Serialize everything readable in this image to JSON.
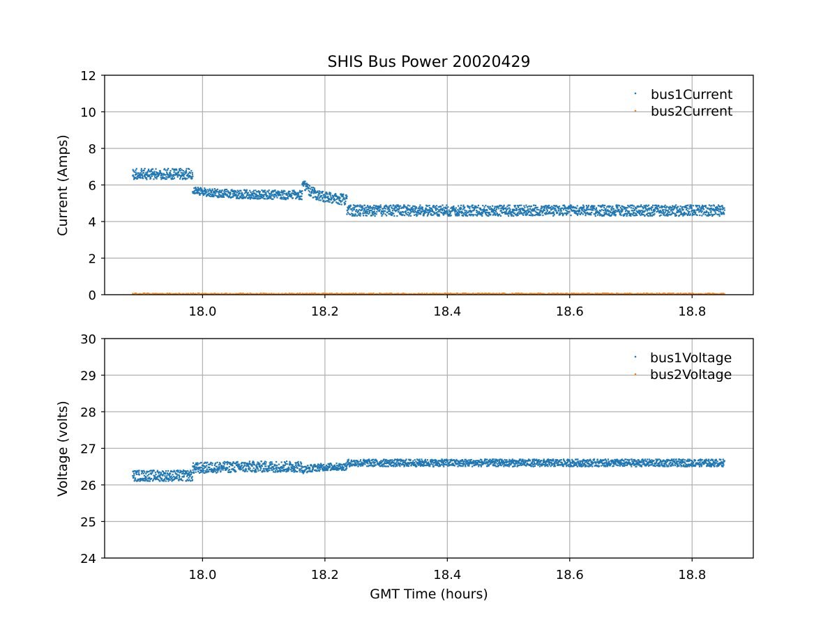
{
  "chart_data": [
    {
      "type": "scatter",
      "title": "SHIS Bus Power 20020429",
      "xlabel": "",
      "ylabel": "Current (Amps)",
      "xlim": [
        17.84,
        18.9
      ],
      "ylim": [
        0,
        12
      ],
      "xticks": [
        18.0,
        18.2,
        18.4,
        18.6,
        18.8
      ],
      "xtick_labels": [
        "18.0",
        "18.2",
        "18.4",
        "18.6",
        "18.8"
      ],
      "yticks": [
        0,
        2,
        4,
        6,
        8,
        10,
        12
      ],
      "ytick_labels": [
        "0",
        "2",
        "4",
        "6",
        "8",
        "10",
        "12"
      ],
      "grid": true,
      "legend_position": "top-right",
      "x_range": [
        17.886,
        18.853
      ],
      "series": [
        {
          "name": "bus1Current",
          "color": "#1f77b4",
          "segments": [
            {
              "x": [
                17.886,
                17.984
              ],
              "band": [
                [
                  6.3,
                  6.6
                ],
                [
                  6.5,
                  6.9
                ]
              ]
            },
            {
              "x": [
                17.984,
                18.163
              ],
              "start": [
                5.5,
                5.9
              ],
              "end": [
                5.2,
                5.7
              ]
            },
            {
              "x": [
                18.163,
                18.236
              ],
              "start": [
                5.9,
                6.5
              ],
              "end": [
                4.9,
                5.5
              ]
            },
            {
              "x": [
                18.236,
                18.853
              ],
              "band": [
                [
                  4.3,
                  4.6
                ],
                [
                  4.6,
                  4.9
                ]
              ]
            }
          ]
        },
        {
          "name": "bus2Current",
          "color": "#ff7f0e",
          "level": 0.05
        }
      ]
    },
    {
      "type": "scatter",
      "title": "",
      "xlabel": "GMT Time (hours)",
      "ylabel": "Voltage (volts)",
      "xlim": [
        17.84,
        18.9
      ],
      "ylim": [
        24,
        30
      ],
      "xticks": [
        18.0,
        18.2,
        18.4,
        18.6,
        18.8
      ],
      "xtick_labels": [
        "18.0",
        "18.2",
        "18.4",
        "18.6",
        "18.8"
      ],
      "yticks": [
        24,
        25,
        26,
        27,
        28,
        29,
        30
      ],
      "ytick_labels": [
        "24",
        "25",
        "26",
        "27",
        "28",
        "29",
        "30"
      ],
      "grid": true,
      "legend_position": "top-right",
      "x_range": [
        17.886,
        18.853
      ],
      "series": [
        {
          "name": "bus1Voltage",
          "color": "#1f77b4",
          "segments": [
            {
              "x": [
                17.886,
                17.984
              ],
              "start": [
                26.1,
                26.4
              ],
              "end": [
                26.1,
                26.4
              ]
            },
            {
              "x": [
                17.984,
                18.163
              ],
              "start": [
                26.3,
                26.6
              ],
              "end": [
                26.35,
                26.65
              ]
            },
            {
              "x": [
                18.163,
                18.236
              ],
              "start": [
                26.3,
                26.5
              ],
              "end": [
                26.4,
                26.6
              ]
            },
            {
              "x": [
                18.236,
                18.853
              ],
              "start": [
                26.5,
                26.7
              ],
              "end": [
                26.5,
                26.7
              ]
            }
          ]
        },
        {
          "name": "bus2Voltage",
          "color": "#ff7f0e"
        }
      ]
    }
  ]
}
